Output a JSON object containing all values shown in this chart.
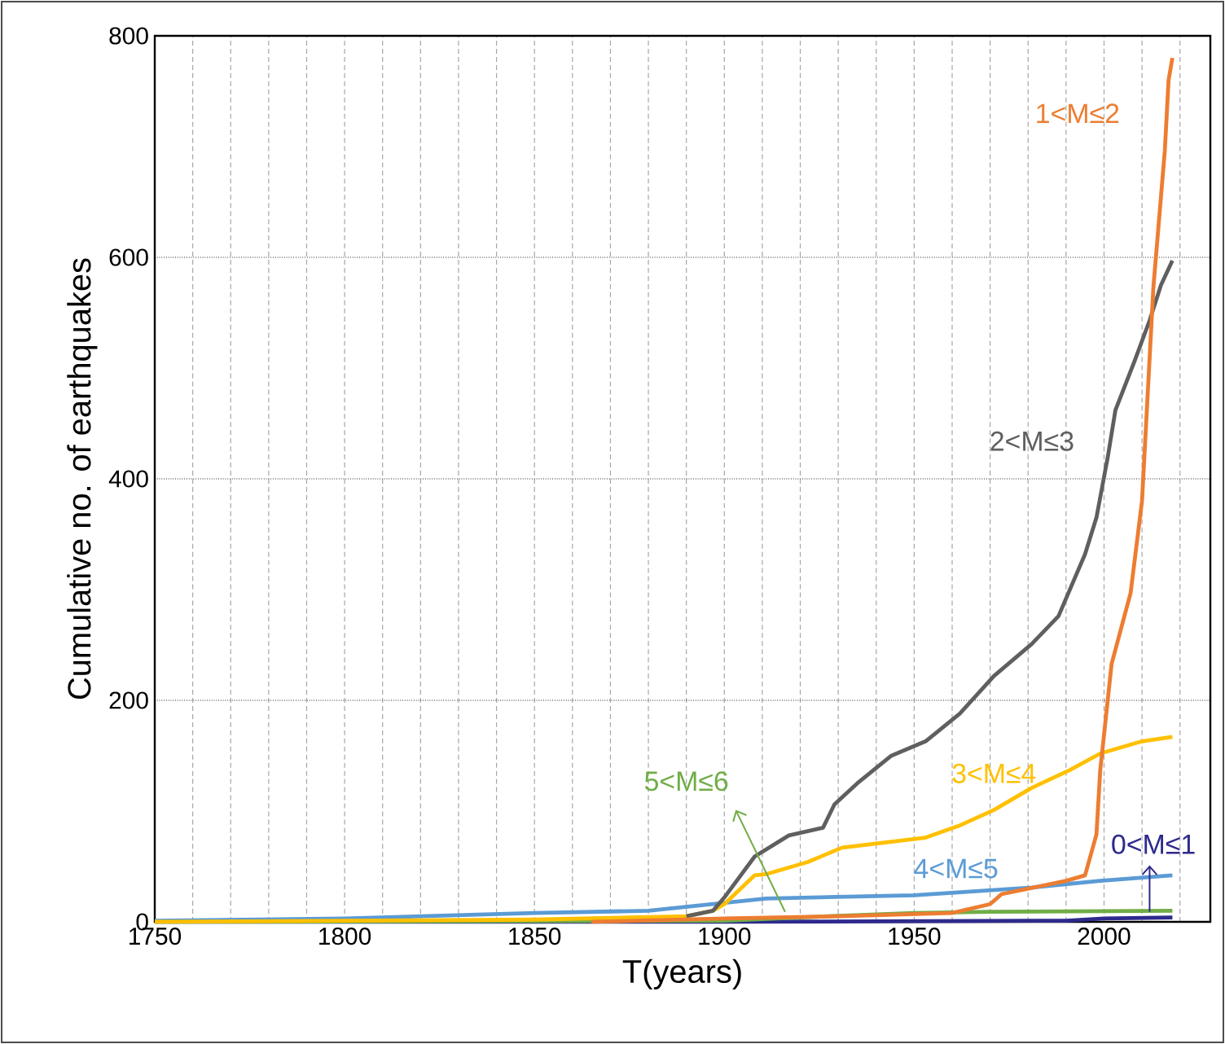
{
  "chart_data": {
    "type": "line",
    "xlabel": "T(years)",
    "ylabel": "Cumulative no. of earthquakes",
    "xlim": [
      1750,
      2028
    ],
    "ylim": [
      0,
      800
    ],
    "xticks": [
      1750,
      {
        "value": 1760,
        "label": null
      },
      {
        "value": 1770,
        "label": null
      },
      {
        "value": 1780,
        "label": null
      },
      {
        "value": 1790,
        "label": null
      },
      1800,
      {
        "value": 1810,
        "label": null
      },
      {
        "value": 1820,
        "label": null
      },
      {
        "value": 1830,
        "label": null
      },
      {
        "value": 1840,
        "label": null
      },
      1850,
      {
        "value": 1860,
        "label": null
      },
      {
        "value": 1870,
        "label": null
      },
      {
        "value": 1880,
        "label": null
      },
      {
        "value": 1890,
        "label": null
      },
      1900,
      {
        "value": 1910,
        "label": null
      },
      {
        "value": 1920,
        "label": null
      },
      {
        "value": 1930,
        "label": null
      },
      {
        "value": 1940,
        "label": null
      },
      1950,
      {
        "value": 1960,
        "label": null
      },
      {
        "value": 1970,
        "label": null
      },
      {
        "value": 1980,
        "label": null
      },
      {
        "value": 1990,
        "label": null
      },
      2000,
      {
        "value": 2010,
        "label": null
      },
      {
        "value": 2020,
        "label": null
      }
    ],
    "yticks": [
      0,
      200,
      400,
      600,
      800
    ],
    "grid": true,
    "legend": false,
    "marker": "none",
    "series": [
      {
        "name": "0<M≤1",
        "color": "#2e2a8c",
        "x": [
          1750,
          1900,
          1990,
          2000,
          2018
        ],
        "values": [
          0,
          0,
          1,
          3,
          4
        ]
      },
      {
        "name": "5<M≤6",
        "color": "#70ad47",
        "x": [
          1750,
          1900,
          1920,
          1950,
          1970,
          2018
        ],
        "values": [
          0,
          1,
          4,
          8,
          9,
          10
        ]
      },
      {
        "name": "4<M≤5",
        "color": "#5b9bd5",
        "x": [
          1750,
          1800,
          1850,
          1880,
          1897,
          1911,
          1950,
          1981,
          1999,
          2018
        ],
        "values": [
          1,
          3,
          8,
          10,
          16,
          21,
          24,
          31,
          37,
          42
        ]
      },
      {
        "name": "3<M≤4",
        "color": "#ffc000",
        "x": [
          1750,
          1850,
          1890,
          1897,
          1900,
          1908,
          1911,
          1922,
          1931,
          1953,
          1962,
          1971,
          1981,
          1991,
          1999,
          2010,
          2018
        ],
        "values": [
          0,
          2,
          5,
          10,
          16,
          42,
          43,
          54,
          67,
          76,
          87,
          101,
          121,
          137,
          152,
          163,
          167
        ]
      },
      {
        "name": "2<M≤3",
        "color": "#5f5f5f",
        "x": [
          1890,
          1897,
          1900,
          1908,
          1917,
          1926,
          1929,
          1935,
          1944,
          1953,
          1962,
          1971,
          1981,
          1988,
          1995,
          1998,
          2001,
          2003,
          2008,
          2012,
          2015,
          2018
        ],
        "values": [
          5,
          10,
          22,
          59,
          78,
          85,
          106,
          125,
          150,
          163,
          188,
          222,
          251,
          276,
          332,
          365,
          420,
          462,
          506,
          543,
          575,
          597
        ]
      },
      {
        "name": "1<M≤2",
        "color": "#ed7d31",
        "x": [
          1865,
          1900,
          1930,
          1960,
          1970,
          1973,
          1990,
          1995,
          1998,
          1999,
          2002,
          2007,
          2010,
          2013,
          2016,
          2017,
          2018
        ],
        "values": [
          0,
          3,
          5,
          8,
          16,
          25,
          37,
          42,
          79,
          137,
          233,
          297,
          380,
          573,
          696,
          760,
          780
        ]
      }
    ]
  }
}
